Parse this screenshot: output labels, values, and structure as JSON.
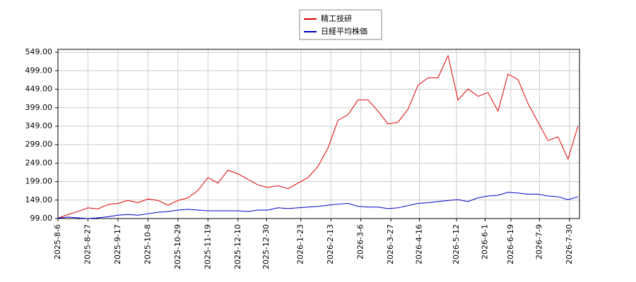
{
  "chart_data": {
    "type": "line",
    "x": [
      "2025-8-6",
      "2025-8-13",
      "2025-8-20",
      "2025-8-27",
      "2025-9-3",
      "2025-9-10",
      "2025-9-17",
      "2025-9-24",
      "2025-10-1",
      "2025-10-8",
      "2025-10-15",
      "2025-10-22",
      "2025-10-29",
      "2025-11-5",
      "2025-11-12",
      "2025-11-19",
      "2025-11-26",
      "2025-12-3",
      "2025-12-10",
      "2025-12-17",
      "2025-12-24",
      "2025-12-31",
      "2026-1-7",
      "2026-1-14",
      "2026-1-21",
      "2026-1-28",
      "2026-2-4",
      "2026-2-11",
      "2026-2-18",
      "2026-2-25",
      "2026-3-4",
      "2026-3-11",
      "2026-3-18",
      "2026-3-25",
      "2026-4-1",
      "2026-4-8",
      "2026-4-15",
      "2026-4-22",
      "2026-4-29",
      "2026-5-6",
      "2026-5-13",
      "2026-5-20",
      "2026-5-27",
      "2026-6-3",
      "2026-6-10",
      "2026-6-17",
      "2026-6-24",
      "2026-7-1",
      "2026-7-8",
      "2026-7-15",
      "2026-7-22",
      "2026-7-29",
      "2026-8-5"
    ],
    "series": [
      {
        "name": "精工技研",
        "color": "#dd0000",
        "values": [
          100,
          110,
          118,
          128,
          125,
          137,
          140,
          148,
          142,
          152,
          148,
          135,
          148,
          155,
          175,
          210,
          195,
          230,
          220,
          205,
          190,
          183,
          188,
          180,
          195,
          210,
          240,
          290,
          365,
          380,
          420,
          420,
          390,
          355,
          360,
          395,
          460,
          480,
          480,
          540,
          420,
          450,
          430,
          440,
          390,
          490,
          475,
          410,
          360,
          310,
          320,
          260,
          350
        ]
      },
      {
        "name": "日経平均株価",
        "color": "#0000cc",
        "values": [
          100,
          103,
          101,
          99,
          101,
          104,
          108,
          110,
          108,
          112,
          116,
          118,
          122,
          124,
          122,
          120,
          120,
          120,
          120,
          118,
          122,
          122,
          128,
          126,
          128,
          130,
          132,
          135,
          138,
          140,
          132,
          130,
          130,
          126,
          128,
          134,
          140,
          142,
          145,
          148,
          150,
          145,
          155,
          160,
          162,
          170,
          168,
          165,
          165,
          160,
          158,
          150,
          158
        ]
      }
    ],
    "xlim": [
      "2025-8-6",
      "2026-8-6"
    ],
    "xticks": [
      "2025-8-6",
      "2025-8-27",
      "2025-9-17",
      "2025-10-8",
      "2025-10-29",
      "2025-11-19",
      "2025-12-10",
      "2025-12-30",
      "2026-1-23",
      "2026-2-13",
      "2026-3-6",
      "2026-3-27",
      "2026-4-16",
      "2026-5-12",
      "2026-6-1",
      "2026-6-19",
      "2026-7-9",
      "2026-7-30"
    ],
    "ylim": [
      99,
      557
    ],
    "yticks": [
      {
        "value": 99,
        "label": "99.00"
      },
      {
        "value": 149,
        "label": "149.00"
      },
      {
        "value": 199,
        "label": "199.00"
      },
      {
        "value": 249,
        "label": "249.00"
      },
      {
        "value": 299,
        "label": "299.00"
      },
      {
        "value": 349,
        "label": "349.00"
      },
      {
        "value": 399,
        "label": "399.00"
      },
      {
        "value": 449,
        "label": "449.00"
      },
      {
        "value": 499,
        "label": "499.00"
      },
      {
        "value": 549,
        "label": "549.00"
      }
    ],
    "grid": true
  }
}
